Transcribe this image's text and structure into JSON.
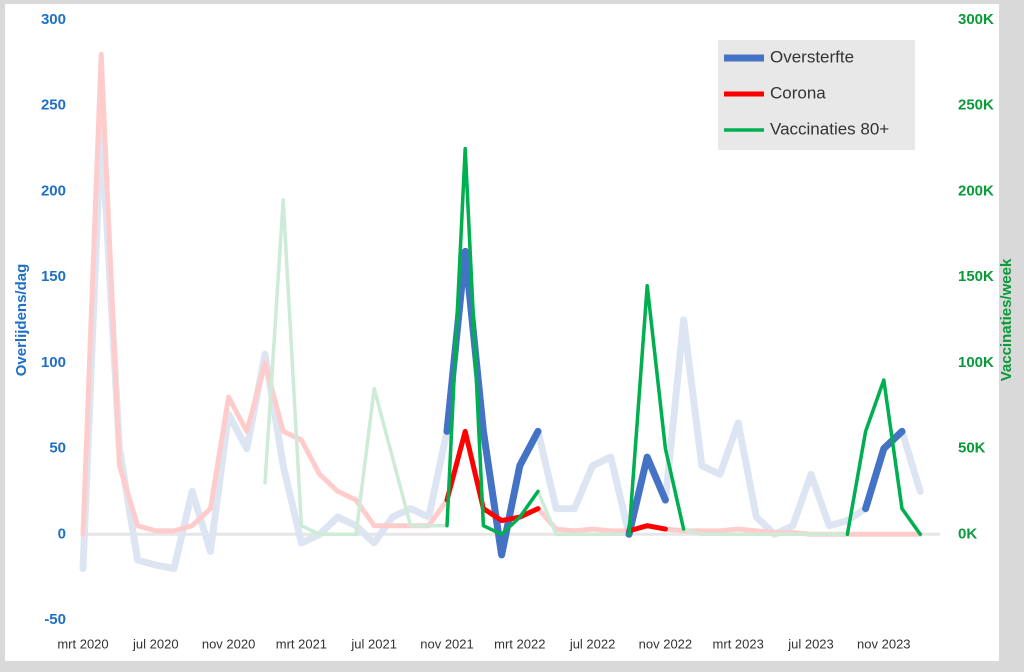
{
  "chart_data": {
    "type": "line",
    "y_label": "Overlijdens/dag",
    "y2_label": "Vaccinaties/week",
    "categories": [
      "mrt 2020",
      null,
      null,
      null,
      "jul 2020",
      null,
      null,
      null,
      "nov 2020",
      null,
      null,
      null,
      "mrt 2021",
      null,
      null,
      null,
      "jul 2021",
      null,
      null,
      null,
      "nov 2021",
      null,
      null,
      null,
      "mrt 2022",
      null,
      null,
      null,
      "jul 2022",
      null,
      null,
      null,
      "nov 2022",
      null,
      null,
      null,
      "mrt 2023",
      null,
      null,
      null,
      "jul 2023",
      null,
      null,
      null,
      "nov 2023",
      null,
      null
    ],
    "series": [
      {
        "name": "Oversterfte",
        "color": "#4472c4",
        "values": [
          null,
          null,
          null,
          null,
          null,
          null,
          null,
          null,
          null,
          null,
          null,
          null,
          null,
          null,
          null,
          null,
          null,
          null,
          null,
          null,
          60,
          165,
          60,
          -12,
          40,
          60,
          null,
          null,
          null,
          null,
          0,
          45,
          20,
          null,
          null,
          null,
          null,
          null,
          null,
          null,
          null,
          null,
          null,
          15,
          50,
          60,
          null
        ]
      },
      {
        "name": "Corona",
        "color": "#ff0000",
        "values": [
          null,
          null,
          null,
          null,
          null,
          null,
          null,
          null,
          null,
          null,
          null,
          null,
          null,
          null,
          null,
          null,
          null,
          null,
          null,
          null,
          20,
          60,
          15,
          8,
          10,
          15,
          null,
          null,
          null,
          null,
          2,
          5,
          3,
          null,
          null,
          null,
          null,
          null,
          null,
          null,
          null,
          null,
          null,
          null,
          null,
          null,
          null
        ]
      },
      {
        "name": "Vaccinaties 80+",
        "color": "#00b050",
        "axis": "y2",
        "values": [
          null,
          null,
          null,
          null,
          null,
          null,
          null,
          null,
          null,
          null,
          null,
          null,
          null,
          null,
          null,
          null,
          null,
          null,
          null,
          null,
          5000,
          225000,
          5000,
          0,
          10000,
          25000,
          null,
          null,
          null,
          null,
          0,
          145000,
          50000,
          3000,
          null,
          null,
          null,
          null,
          null,
          null,
          null,
          null,
          0,
          60000,
          90000,
          15000,
          0
        ]
      },
      {
        "color": "#dde5f3",
        "values": [
          -20,
          240,
          50,
          -15,
          -18,
          -20,
          25,
          -10,
          70,
          50,
          105,
          40,
          -5,
          0,
          10,
          5,
          -5,
          10,
          15,
          10,
          60,
          165,
          60,
          -12,
          40,
          60,
          15,
          15,
          40,
          45,
          0,
          45,
          20,
          125,
          40,
          35,
          65,
          10,
          0,
          5,
          35,
          5,
          8,
          15,
          50,
          60,
          25
        ]
      },
      {
        "color": "#ffcccc",
        "values": [
          0,
          280,
          40,
          5,
          2,
          2,
          5,
          15,
          80,
          60,
          100,
          60,
          55,
          35,
          25,
          20,
          5,
          5,
          5,
          5,
          20,
          60,
          15,
          8,
          10,
          15,
          3,
          2,
          3,
          2,
          2,
          5,
          3,
          2,
          2,
          2,
          3,
          2,
          1,
          1,
          0,
          0,
          0,
          0,
          0,
          0,
          0
        ]
      },
      {
        "color": "#cdebd6",
        "axis": "y2",
        "values": [
          null,
          null,
          null,
          null,
          null,
          null,
          null,
          null,
          null,
          null,
          30000,
          195000,
          5000,
          0,
          0,
          0,
          85000,
          45000,
          5000,
          5000,
          5000,
          225000,
          5000,
          0,
          10000,
          25000,
          0,
          0,
          0,
          0,
          0,
          145000,
          50000,
          3000,
          0,
          0,
          0,
          0,
          0,
          0,
          0,
          0,
          0,
          60000,
          90000,
          15000,
          0
        ]
      }
    ],
    "ylim": [
      -50,
      300
    ],
    "yticks": [
      -50,
      0,
      50,
      100,
      150,
      200,
      250,
      300
    ],
    "y2lim": [
      -50000,
      300000
    ],
    "y2ticks": [
      {
        "value": 0,
        "label": "0K"
      },
      {
        "value": 50000,
        "label": "50K"
      },
      {
        "value": 100000,
        "label": "100K"
      },
      {
        "value": 150000,
        "label": "150K"
      },
      {
        "value": 200000,
        "label": "200K"
      },
      {
        "value": 250000,
        "label": "250K"
      },
      {
        "value": 300000,
        "label": "300K"
      }
    ],
    "legend": "upper right",
    "grid": false
  }
}
